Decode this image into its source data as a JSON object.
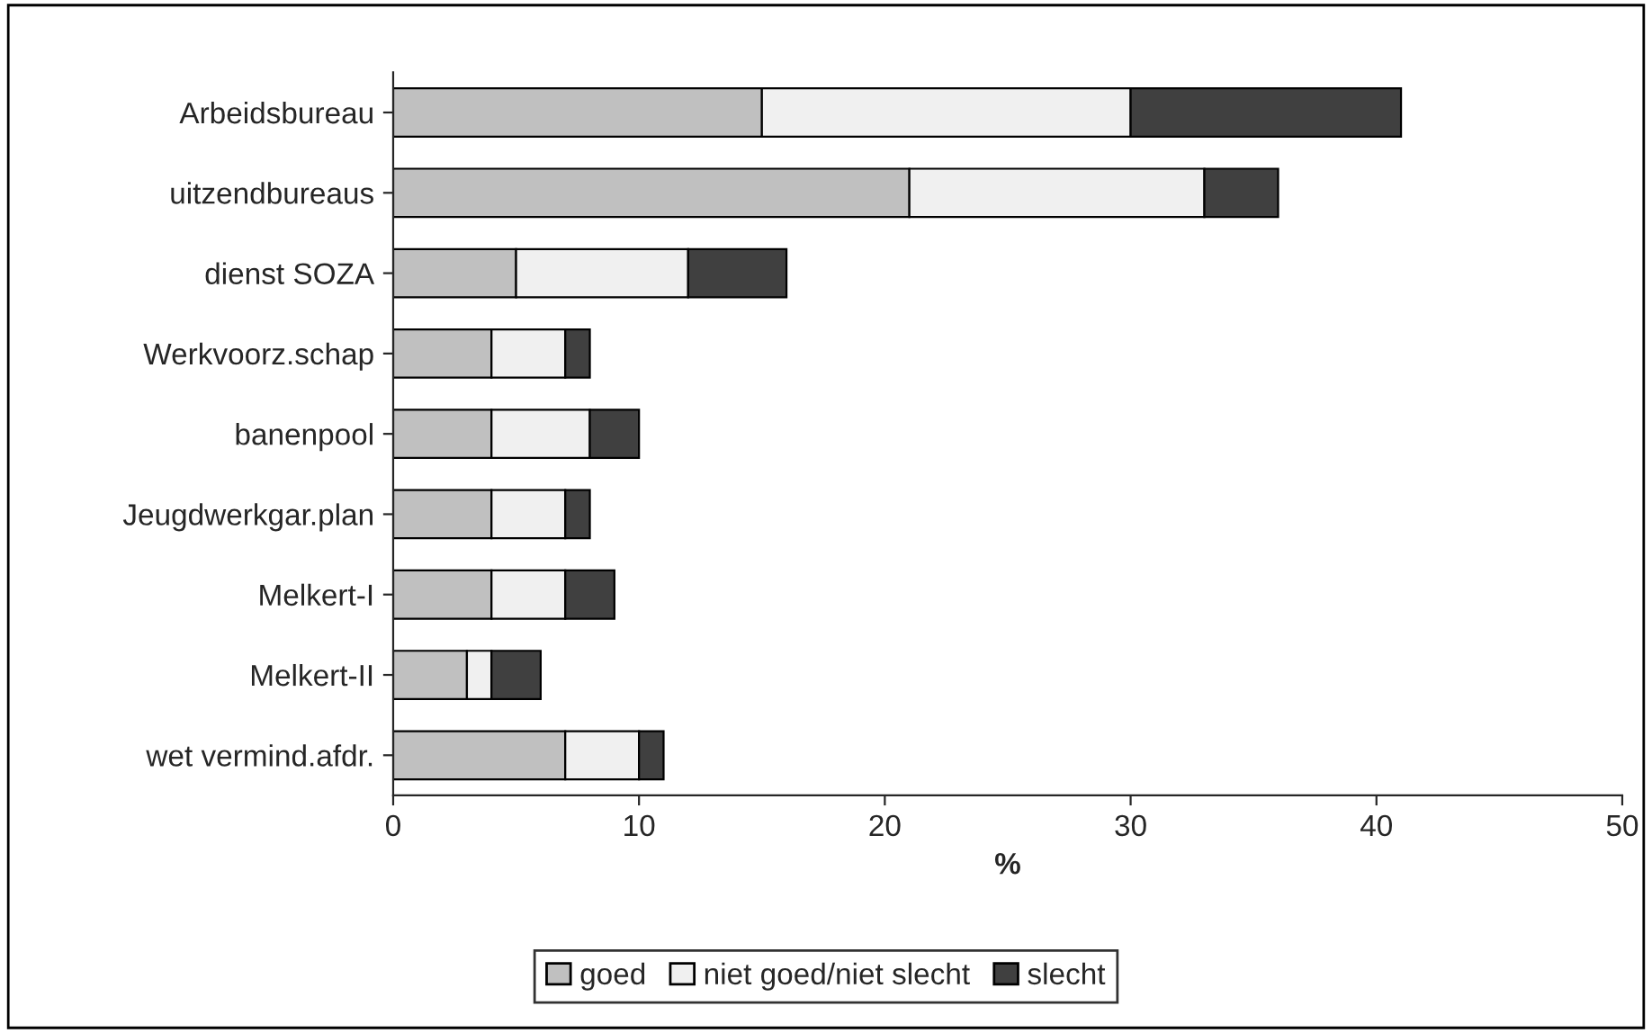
{
  "chart_data": {
    "type": "bar",
    "orientation": "horizontal",
    "stacked": true,
    "xlabel": "%",
    "categories": [
      "Arbeidsbureau",
      "uitzendbureaus",
      "dienst SOZA",
      "Werkvoorz.schap",
      "banenpool",
      "Jeugdwerkgar.plan",
      "Melkert-I",
      "Melkert-II",
      "wet vermind.afdr."
    ],
    "series": [
      {
        "name": "goed",
        "color": "#c0c0c0",
        "values": [
          15,
          21,
          5,
          4,
          4,
          4,
          4,
          3,
          7
        ]
      },
      {
        "name": "niet goed/niet slecht",
        "color": "#f0f0f0",
        "values": [
          15,
          12,
          7,
          3,
          4,
          3,
          3,
          1,
          3
        ]
      },
      {
        "name": "slecht",
        "color": "#404040",
        "values": [
          11,
          3,
          4,
          1,
          2,
          1,
          2,
          2,
          1
        ]
      }
    ],
    "xlim": [
      0,
      50
    ],
    "xticks": [
      0,
      10,
      20,
      30,
      40,
      50
    ],
    "grid": false,
    "legend": "bottom"
  }
}
